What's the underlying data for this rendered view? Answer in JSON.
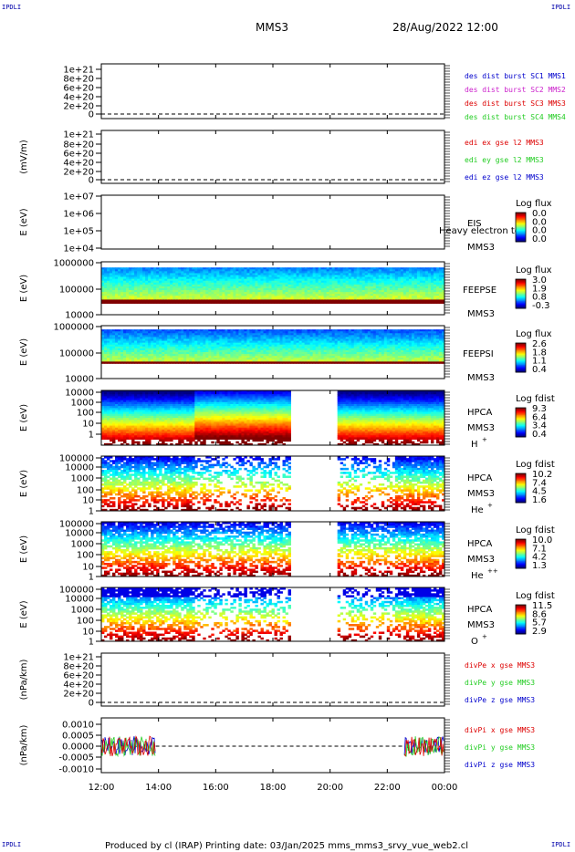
{
  "corner_label": "IPDLI",
  "header": {
    "left": "MMS3",
    "right": "28/Aug/2022 12:00"
  },
  "footer": "Produced by cl (IRAP)   Printing date: 03/Jan/2025   mms_mms3_srvy_vue_web2.cl",
  "colors": {
    "red": "#dd0000",
    "green": "#22cc22",
    "blue": "#0000cc",
    "magenta": "#cc22cc",
    "dark_red": "#880000"
  },
  "chart_data": {
    "type": "heatmap",
    "x_ticks": [
      "12:00",
      "14:00",
      "16:00",
      "18:00",
      "20:00",
      "22:00",
      "00:00"
    ],
    "x_range_hours": [
      12,
      24
    ],
    "panels": [
      {
        "id": "des-dist-burst",
        "type": "line",
        "ylabel": "",
        "yticks": [
          "1e+21",
          "8e+20",
          "6e+20",
          "4e+20",
          "2e+20",
          "0"
        ],
        "legend": [
          {
            "text": "des dist burst SC1 MMS1",
            "color": "#0000cc"
          },
          {
            "text": "des dist burst SC2 MMS2",
            "color": "#cc22cc"
          },
          {
            "text": "des dist burst SC3 MMS3",
            "color": "#dd0000"
          },
          {
            "text": "des dist burst SC4 MMS4",
            "color": "#22cc22"
          }
        ]
      },
      {
        "id": "edi-e-gse",
        "type": "line",
        "ylabel": "(mV/m)",
        "yticks": [
          "1e+21",
          "8e+20",
          "6e+20",
          "4e+20",
          "2e+20",
          "0"
        ],
        "legend": [
          {
            "text": "edi ex gse l2 MMS3",
            "color": "#dd0000"
          },
          {
            "text": "edi ey gse l2 MMS3",
            "color": "#22cc22"
          },
          {
            "text": "edi ez gse l2 MMS3",
            "color": "#0000cc"
          }
        ]
      },
      {
        "id": "eis",
        "type": "heatmap",
        "ylabel": "E (eV)",
        "yticks": [
          "1e+07",
          "1e+06",
          "1e+05",
          "1e+04"
        ],
        "instrument": "EIS",
        "sc": "MMS3",
        "extra_label": "Heavy electron tof",
        "cbar_title": "Log flux",
        "cbar_ticks": [
          "0.0",
          "0.0",
          "0.0",
          "0.0"
        ],
        "data": []
      },
      {
        "id": "feepse",
        "type": "heatmap",
        "ylabel": "E (eV)",
        "yticks": [
          "1000000",
          "100000",
          "10000"
        ],
        "instrument": "FEEPSE",
        "sc": "MMS3",
        "cbar_title": "Log flux",
        "cbar_ticks": [
          "3.0",
          "1.9",
          "0.8",
          "-0.3"
        ],
        "description": "continuous coverage 12:00-24:00; red band at lowest energies"
      },
      {
        "id": "feepsi",
        "type": "heatmap",
        "ylabel": "E (eV)",
        "yticks": [
          "1000000",
          "100000",
          "10000"
        ],
        "instrument": "FEEPSI",
        "sc": "MMS3",
        "cbar_title": "Log flux",
        "cbar_ticks": [
          "2.6",
          "1.8",
          "1.1",
          "0.4"
        ]
      },
      {
        "id": "hpca-h",
        "type": "heatmap",
        "ylabel": "E (eV)",
        "yticks": [
          "10000",
          "1000",
          "100",
          "10",
          "1"
        ],
        "instrument": "HPCA",
        "sc": "MMS3",
        "species": "H",
        "species_charge": "+",
        "cbar_title": "Log fdist",
        "cbar_ticks": [
          "9.3",
          "6.4",
          "3.4",
          "0.4"
        ],
        "gap_hours": [
          18.6,
          20.3
        ]
      },
      {
        "id": "hpca-he",
        "type": "heatmap",
        "ylabel": "E (eV)",
        "yticks": [
          "100000",
          "10000",
          "1000",
          "100",
          "10",
          "1"
        ],
        "instrument": "HPCA",
        "sc": "MMS3",
        "species": "He",
        "species_charge": "+",
        "cbar_title": "Log fdist",
        "cbar_ticks": [
          "10.2",
          "7.4",
          "4.5",
          "1.6"
        ],
        "gap_hours": [
          18.6,
          20.3
        ]
      },
      {
        "id": "hpca-he2",
        "type": "heatmap",
        "ylabel": "E (eV)",
        "yticks": [
          "100000",
          "10000",
          "1000",
          "100",
          "10",
          "1"
        ],
        "instrument": "HPCA",
        "sc": "MMS3",
        "species": "He",
        "species_charge": "++",
        "cbar_title": "Log fdist",
        "cbar_ticks": [
          "10.0",
          "7.1",
          "4.2",
          "1.3"
        ],
        "gap_hours": [
          18.6,
          20.3
        ]
      },
      {
        "id": "hpca-o",
        "type": "heatmap",
        "ylabel": "E (eV)",
        "yticks": [
          "100000",
          "10000",
          "1000",
          "100",
          "10",
          "1"
        ],
        "instrument": "HPCA",
        "sc": "MMS3",
        "species": "O",
        "species_charge": "+",
        "cbar_title": "Log fdist",
        "cbar_ticks": [
          "11.5",
          "8.6",
          "5.7",
          "2.9"
        ],
        "gap_hours": [
          18.6,
          20.3
        ]
      },
      {
        "id": "divpe",
        "type": "line",
        "ylabel": "(nPa/km)",
        "yticks": [
          "1e+21",
          "8e+20",
          "6e+20",
          "4e+20",
          "2e+20",
          "0"
        ],
        "legend": [
          {
            "text": "divPe x gse MMS3",
            "color": "#dd0000"
          },
          {
            "text": "divPe y gse MMS3",
            "color": "#22cc22"
          },
          {
            "text": "divPe z gse MMS3",
            "color": "#0000cc"
          }
        ]
      },
      {
        "id": "divpi",
        "type": "line",
        "ylabel": "(nPa/km)",
        "yticks": [
          "0.0010",
          "0.0005",
          "0.0000",
          "-0.0005",
          "-0.0010"
        ],
        "ylim": [
          -0.0012,
          0.0012
        ],
        "data_intervals_hours": [
          [
            12,
            13.9
          ],
          [
            22.6,
            24
          ]
        ],
        "legend": [
          {
            "text": "divPi x gse MMS3",
            "color": "#dd0000"
          },
          {
            "text": "divPi y gse MMS3",
            "color": "#22cc22"
          },
          {
            "text": "divPi z gse MMS3",
            "color": "#0000cc"
          }
        ]
      }
    ]
  }
}
